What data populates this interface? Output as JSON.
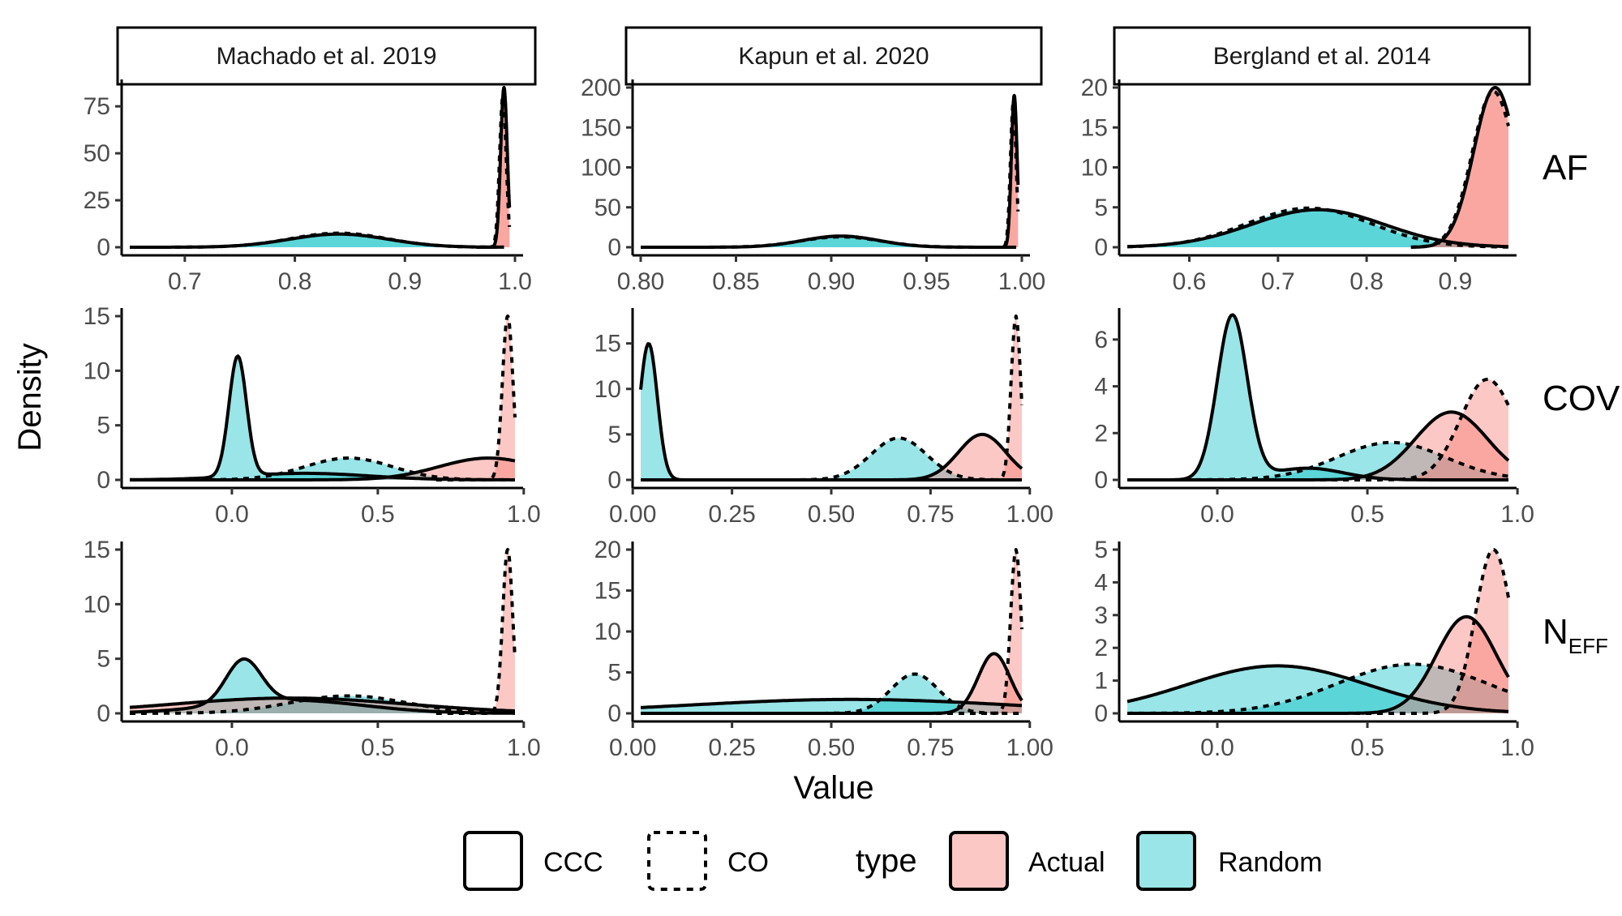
{
  "colors": {
    "actual": "#F8766D",
    "random": "#00BFC4",
    "line": "#000000"
  },
  "chart_data": {
    "type": "area",
    "facets": {
      "columns": [
        "Machado et al. 2019",
        "Kapun et al. 2020",
        "Bergland et al. 2014"
      ],
      "rows": [
        {
          "label": "AF"
        },
        {
          "label": "COV"
        },
        {
          "label_main": "N",
          "label_sub": "EFF"
        }
      ]
    },
    "xlabel": "Value",
    "ylabel": "Density",
    "legend": {
      "placement": "bottom",
      "linetype_entries": [
        "CCC",
        "CO"
      ],
      "type_title": "type",
      "type_entries": [
        "Actual",
        "Random"
      ]
    },
    "panels": [
      {
        "column": "Machado et al. 2019",
        "row": "AF",
        "xlim": [
          0.65,
          1.0
        ],
        "ylim": [
          0,
          85
        ],
        "xticks": [
          0.7,
          0.8,
          0.9,
          1.0
        ],
        "xtick_labels": [
          "0.7",
          "0.8",
          "0.9",
          "1.0"
        ],
        "yticks": [
          0,
          25,
          50,
          75
        ],
        "ytick_labels": [
          "0",
          "25",
          "50",
          "75"
        ],
        "series": [
          {
            "type": "Random",
            "linetype": "CCC",
            "peaks": [
              [
                0.84,
                7,
                0.045
              ]
            ],
            "xmin": 0.65,
            "xmax": 0.99
          },
          {
            "type": "Random",
            "linetype": "CO",
            "peaks": [
              [
                0.84,
                7.5,
                0.044
              ]
            ],
            "xmin": 0.65,
            "xmax": 0.99
          },
          {
            "type": "Actual",
            "linetype": "CCC",
            "peaks": [
              [
                0.99,
                85,
                0.003
              ]
            ],
            "xmin": 0.965,
            "xmax": 0.995
          },
          {
            "type": "Actual",
            "linetype": "CO",
            "peaks": [
              [
                0.989,
                80,
                0.003
              ]
            ],
            "xmin": 0.965,
            "xmax": 0.995
          }
        ]
      },
      {
        "column": "Kapun et al. 2020",
        "row": "AF",
        "xlim": [
          0.8,
          1.0
        ],
        "ylim": [
          0,
          200
        ],
        "xticks": [
          0.8,
          0.85,
          0.9,
          0.95,
          1.0
        ],
        "xtick_labels": [
          "0.80",
          "0.85",
          "0.90",
          "0.95",
          "1.00"
        ],
        "yticks": [
          0,
          50,
          100,
          150,
          200
        ],
        "ytick_labels": [
          "0",
          "50",
          "100",
          "150",
          "200"
        ],
        "series": [
          {
            "type": "Random",
            "linetype": "CCC",
            "peaks": [
              [
                0.905,
                14,
                0.02
              ]
            ],
            "xmin": 0.8,
            "xmax": 0.997
          },
          {
            "type": "Random",
            "linetype": "CO",
            "peaks": [
              [
                0.905,
                13,
                0.021
              ]
            ],
            "xmin": 0.8,
            "xmax": 0.997
          },
          {
            "type": "Actual",
            "linetype": "CCC",
            "peaks": [
              [
                0.996,
                190,
                0.0015
              ]
            ],
            "xmin": 0.985,
            "xmax": 0.998
          },
          {
            "type": "Actual",
            "linetype": "CO",
            "peaks": [
              [
                0.9955,
                180,
                0.0015
              ]
            ],
            "xmin": 0.985,
            "xmax": 0.998
          }
        ]
      },
      {
        "column": "Bergland et al. 2014",
        "row": "AF",
        "xlim": [
          0.53,
          0.96
        ],
        "ylim": [
          0,
          20
        ],
        "xticks": [
          0.6,
          0.7,
          0.8,
          0.9
        ],
        "xtick_labels": [
          "0.6",
          "0.7",
          "0.8",
          "0.9"
        ],
        "yticks": [
          0,
          5,
          10,
          15,
          20
        ],
        "ytick_labels": [
          "0",
          "5",
          "10",
          "15",
          "20"
        ],
        "series": [
          {
            "type": "Random",
            "linetype": "CCC",
            "peaks": [
              [
                0.745,
                4.7,
                0.075
              ]
            ],
            "xmin": 0.53,
            "xmax": 0.96
          },
          {
            "type": "Random",
            "linetype": "CO",
            "peaks": [
              [
                0.735,
                4.9,
                0.07
              ]
            ],
            "xmin": 0.53,
            "xmax": 0.96
          },
          {
            "type": "Actual",
            "linetype": "CCC",
            "peaks": [
              [
                0.945,
                20,
                0.024
              ]
            ],
            "xmin": 0.85,
            "xmax": 0.96
          },
          {
            "type": "Actual",
            "linetype": "CO",
            "peaks": [
              [
                0.943,
                19.5,
                0.024
              ]
            ],
            "xmin": 0.85,
            "xmax": 0.96
          }
        ]
      },
      {
        "column": "Machado et al. 2019",
        "row": "COV",
        "xlim": [
          -0.35,
          0.97
        ],
        "ylim": [
          0,
          15
        ],
        "xticks": [
          0,
          0.5,
          1.0
        ],
        "xtick_labels": [
          "0.0",
          "0.5",
          "1.0"
        ],
        "yticks": [
          0,
          5,
          10,
          15
        ],
        "ytick_labels": [
          "0",
          "5",
          "10",
          "15"
        ],
        "series": [
          {
            "type": "Random",
            "linetype": "CCC",
            "peaks": [
              [
                0.02,
                11,
                0.03
              ],
              [
                0.25,
                0.6,
                0.22
              ]
            ],
            "xmin": -0.35,
            "xmax": 0.97
          },
          {
            "type": "Random",
            "linetype": "CO",
            "peaks": [
              [
                0.4,
                2.0,
                0.15
              ]
            ],
            "xmin": -0.35,
            "xmax": 0.97
          },
          {
            "type": "Actual",
            "linetype": "CCC",
            "peaks": [
              [
                0.88,
                2.0,
                0.17
              ]
            ],
            "xmin": -0.35,
            "xmax": 0.97
          },
          {
            "type": "Actual",
            "linetype": "CO",
            "peaks": [
              [
                0.945,
                15,
                0.018
              ]
            ],
            "xmin": 0.7,
            "xmax": 0.97
          }
        ]
      },
      {
        "column": "Kapun et al. 2020",
        "row": "COV",
        "xlim": [
          0.02,
          0.98
        ],
        "ylim": [
          0,
          18
        ],
        "xticks": [
          0,
          0.25,
          0.5,
          0.75,
          1.0
        ],
        "xtick_labels": [
          "0.00",
          "0.25",
          "0.50",
          "0.75",
          "1.00"
        ],
        "yticks": [
          0,
          5,
          10,
          15
        ],
        "ytick_labels": [
          "0",
          "5",
          "10",
          "15"
        ],
        "series": [
          {
            "type": "Random",
            "linetype": "CCC",
            "peaks": [
              [
                0.04,
                15,
                0.022
              ]
            ],
            "xmin": 0.02,
            "xmax": 0.98
          },
          {
            "type": "Random",
            "linetype": "CO",
            "peaks": [
              [
                0.67,
                4.6,
                0.07
              ]
            ],
            "xmin": 0.02,
            "xmax": 0.98
          },
          {
            "type": "Actual",
            "linetype": "CCC",
            "peaks": [
              [
                0.88,
                5,
                0.06
              ]
            ],
            "xmin": 0.02,
            "xmax": 0.98
          },
          {
            "type": "Actual",
            "linetype": "CO",
            "peaks": [
              [
                0.965,
                18,
                0.012
              ]
            ],
            "xmin": 0.02,
            "xmax": 0.98
          }
        ]
      },
      {
        "column": "Bergland et al. 2014",
        "row": "COV",
        "xlim": [
          -0.3,
          0.97
        ],
        "ylim": [
          0,
          7
        ],
        "xticks": [
          0,
          0.5,
          1.0
        ],
        "xtick_labels": [
          "0.0",
          "0.5",
          "1.0"
        ],
        "yticks": [
          0,
          2,
          4,
          6
        ],
        "ytick_labels": [
          "0",
          "2",
          "4",
          "6"
        ],
        "series": [
          {
            "type": "Random",
            "linetype": "CCC",
            "peaks": [
              [
                0.05,
                7,
                0.05
              ],
              [
                0.3,
                0.5,
                0.12
              ]
            ],
            "xmin": -0.3,
            "xmax": 0.97
          },
          {
            "type": "Random",
            "linetype": "CO",
            "peaks": [
              [
                0.58,
                1.6,
                0.18
              ]
            ],
            "xmin": -0.3,
            "xmax": 0.97
          },
          {
            "type": "Actual",
            "linetype": "CCC",
            "peaks": [
              [
                0.78,
                2.9,
                0.12
              ]
            ],
            "xmin": -0.3,
            "xmax": 0.97
          },
          {
            "type": "Actual",
            "linetype": "CO",
            "peaks": [
              [
                0.9,
                4.3,
                0.09
              ]
            ],
            "xmin": -0.3,
            "xmax": 0.97
          }
        ]
      },
      {
        "column": "Machado et al. 2019",
        "row": "N_EFF",
        "xlim": [
          -0.35,
          0.97
        ],
        "ylim": [
          0,
          15
        ],
        "xticks": [
          0,
          0.5,
          1.0
        ],
        "xtick_labels": [
          "0.0",
          "0.5",
          "1.0"
        ],
        "yticks": [
          0,
          5,
          10,
          15
        ],
        "ytick_labels": [
          "0",
          "5",
          "10",
          "15"
        ],
        "series": [
          {
            "type": "Random",
            "linetype": "CCC",
            "peaks": [
              [
                0.04,
                4,
                0.06
              ],
              [
                0.2,
                1.2,
                0.25
              ]
            ],
            "xmin": -0.35,
            "xmax": 0.97
          },
          {
            "type": "Random",
            "linetype": "CO",
            "peaks": [
              [
                0.4,
                1.6,
                0.2
              ]
            ],
            "xmin": -0.35,
            "xmax": 0.97
          },
          {
            "type": "Actual",
            "linetype": "CCC",
            "peaks": [
              [
                0.2,
                1.4,
                0.4
              ]
            ],
            "xmin": -0.35,
            "xmax": 0.97
          },
          {
            "type": "Actual",
            "linetype": "CO",
            "peaks": [
              [
                0.945,
                15,
                0.017
              ]
            ],
            "xmin": 0.7,
            "xmax": 0.97
          }
        ]
      },
      {
        "column": "Kapun et al. 2020",
        "row": "N_EFF",
        "xlim": [
          0.02,
          0.98
        ],
        "ylim": [
          0,
          20
        ],
        "xticks": [
          0,
          0.25,
          0.5,
          0.75,
          1.0
        ],
        "xtick_labels": [
          "0.00",
          "0.25",
          "0.50",
          "0.75",
          "1.00"
        ],
        "yticks": [
          0,
          5,
          10,
          15,
          20
        ],
        "ytick_labels": [
          "0",
          "5",
          "10",
          "15",
          "20"
        ],
        "series": [
          {
            "type": "Random",
            "linetype": "CCC",
            "peaks": [
              [
                0.55,
                1.7,
                0.4
              ]
            ],
            "xmin": 0.02,
            "xmax": 0.98
          },
          {
            "type": "Random",
            "linetype": "CO",
            "peaks": [
              [
                0.71,
                4.8,
                0.06
              ]
            ],
            "xmin": 0.02,
            "xmax": 0.98
          },
          {
            "type": "Actual",
            "linetype": "CCC",
            "peaks": [
              [
                0.91,
                7.3,
                0.04
              ]
            ],
            "xmin": 0.02,
            "xmax": 0.98
          },
          {
            "type": "Actual",
            "linetype": "CO",
            "peaks": [
              [
                0.965,
                20,
                0.013
              ]
            ],
            "xmin": 0.02,
            "xmax": 0.98
          }
        ]
      },
      {
        "column": "Bergland et al. 2014",
        "row": "N_EFF",
        "xlim": [
          -0.3,
          0.97
        ],
        "ylim": [
          0,
          5
        ],
        "xticks": [
          0,
          0.5,
          1.0
        ],
        "xtick_labels": [
          "0.0",
          "0.5",
          "1.0"
        ],
        "yticks": [
          0,
          1,
          2,
          3,
          4,
          5
        ],
        "ytick_labels": [
          "0",
          "1",
          "2",
          "3",
          "4",
          "5"
        ],
        "series": [
          {
            "type": "Random",
            "linetype": "CCC",
            "peaks": [
              [
                0.2,
                1.45,
                0.3
              ]
            ],
            "xmin": -0.3,
            "xmax": 0.97
          },
          {
            "type": "Random",
            "linetype": "CO",
            "peaks": [
              [
                0.65,
                1.5,
                0.25
              ]
            ],
            "xmin": -0.3,
            "xmax": 0.97
          },
          {
            "type": "Actual",
            "linetype": "CCC",
            "peaks": [
              [
                0.83,
                2.95,
                0.1
              ]
            ],
            "xmin": -0.3,
            "xmax": 0.97
          },
          {
            "type": "Actual",
            "linetype": "CO",
            "peaks": [
              [
                0.92,
                5,
                0.06
              ]
            ],
            "xmin": -0.3,
            "xmax": 0.97
          }
        ]
      }
    ]
  }
}
